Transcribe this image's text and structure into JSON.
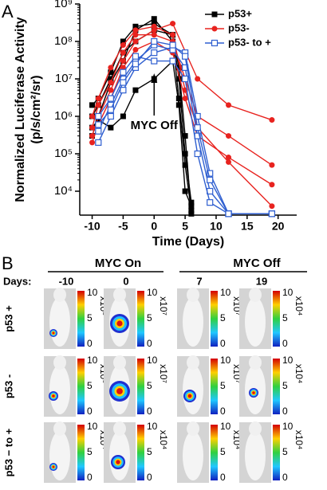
{
  "chart_data": {
    "type": "line",
    "panel_label": "A",
    "yscale": "log",
    "ylabel": [
      "Normalized Luciferase Activity",
      "(p/s/cm²/sr)"
    ],
    "xlabel": "Time (Days)",
    "xlim": [
      -12,
      23
    ],
    "xticks": [
      -10,
      -5,
      0,
      5,
      10,
      15,
      20
    ],
    "ylim": [
      2300,
      1000000000
    ],
    "yticks": [
      {
        "value": 10000,
        "label": "10⁴"
      },
      {
        "value": 100000,
        "label": "10⁵"
      },
      {
        "value": 1000000,
        "label": "10⁶"
      },
      {
        "value": 10000000,
        "label": "10⁷"
      },
      {
        "value": 100000000,
        "label": "10⁸"
      },
      {
        "value": 1000000000,
        "label": "10⁹"
      }
    ],
    "annotation": {
      "text": "MYC Off",
      "x": 0
    },
    "legend": "top-right",
    "series": [
      {
        "name": "p53+",
        "color": "#000000",
        "marker": "square-filled",
        "lines": [
          {
            "x": [
              -10,
              -9,
              -7,
              -5,
              -3,
              0,
              3,
              4,
              5,
              6
            ],
            "values": [
              300000,
              1000000,
              8000000,
              30000000,
              200000000,
              400000000,
              100000000,
              3000000,
              50000,
              3000
            ]
          },
          {
            "x": [
              -10,
              -9,
              -7,
              -5,
              -3,
              0,
              3,
              4,
              5,
              6
            ],
            "values": [
              1000000,
              2000000,
              10000000,
              50000000,
              100000000,
              200000000,
              150000000,
              10000000,
              100000,
              5000
            ]
          },
          {
            "x": [
              -10,
              -9,
              -7,
              -5,
              -3,
              0,
              3,
              4,
              5,
              6
            ],
            "values": [
              2000000,
              3000000,
              15000000,
              100000000,
              250000000,
              300000000,
              150000000,
              20000000,
              300000,
              2500
            ]
          },
          {
            "x": [
              -10,
              -9,
              -7,
              -5,
              -3,
              0,
              3,
              4,
              5,
              6
            ],
            "values": [
              500000,
              800000,
              500000,
              1000000,
              5000000,
              10000000,
              30000000,
              2000000,
              10000,
              4000
            ]
          }
        ]
      },
      {
        "name": "p53-",
        "color": "#e8231f",
        "marker": "circle-filled",
        "lines": [
          {
            "x": [
              -10,
              -9,
              -7,
              -5,
              -3,
              0,
              3,
              7,
              12,
              19
            ],
            "values": [
              300000,
              1000000,
              5000000,
              30000000,
              100000000,
              200000000,
              300000000,
              10000000,
              2000000,
              800000
            ]
          },
          {
            "x": [
              -10,
              -9,
              -7,
              -5,
              -3,
              0,
              3,
              5,
              7,
              12,
              19
            ],
            "values": [
              500000,
              2000000,
              8000000,
              50000000,
              150000000,
              150000000,
              100000000,
              10000000,
              1000000,
              300000,
              50000
            ]
          },
          {
            "x": [
              -10,
              -9,
              -7,
              -5,
              -3,
              0,
              3,
              5,
              7,
              12,
              19
            ],
            "values": [
              200000,
              600000,
              3000000,
              20000000,
              60000000,
              100000000,
              50000000,
              3000000,
              300000,
              80000,
              15000
            ]
          },
          {
            "x": [
              -10,
              -9,
              -7,
              -5,
              -3,
              0,
              3,
              5,
              7,
              12,
              19
            ],
            "values": [
              1000000,
              3000000,
              20000000,
              80000000,
              200000000,
              250000000,
              150000000,
              5000000,
              500000,
              60000,
              4000
            ]
          }
        ]
      },
      {
        "name": "p53- to +",
        "color": "#2f5fd0",
        "marker": "square-open",
        "lines": [
          {
            "x": [
              -9,
              -7,
              -5,
              -3,
              0,
              3,
              5,
              7,
              9,
              12,
              19
            ],
            "values": [
              200000,
              1000000,
              5000000,
              20000000,
              50000000,
              70000000,
              50000000,
              1000000,
              30000,
              2500,
              2500
            ]
          },
          {
            "x": [
              -9,
              -7,
              -5,
              -3,
              0,
              3,
              5,
              7,
              9,
              12,
              19
            ],
            "values": [
              400000,
              2000000,
              10000000,
              30000000,
              80000000,
              60000000,
              20000000,
              300000,
              10000,
              2500,
              2500
            ]
          },
          {
            "x": [
              -9,
              -7,
              -5,
              -3,
              0,
              3,
              5,
              7,
              9,
              12,
              19
            ],
            "values": [
              1000000,
              3000000,
              15000000,
              40000000,
              30000000,
              30000000,
              10000000,
              100000,
              5000,
              2500,
              2500
            ]
          },
          {
            "x": [
              -9,
              -7,
              -5,
              -3,
              0,
              3,
              5,
              7,
              9,
              12
            ],
            "values": [
              600000,
              1500000,
              8000000,
              25000000,
              100000000,
              80000000,
              40000000,
              500000,
              20000,
              2500
            ]
          }
        ]
      }
    ]
  },
  "panel_b": {
    "label": "B",
    "groups": [
      "MYC On",
      "MYC Off"
    ],
    "days_label": "Days:",
    "days": [
      "-10",
      "0",
      "7",
      "19"
    ],
    "row_labels": [
      "p53 +",
      "p53 -",
      "p53 − to +"
    ],
    "colorbar_ticks": [
      "10",
      "5",
      "0"
    ],
    "scales": [
      [
        "x10⁸",
        "x10⁷",
        "x10⁷",
        "x10⁴"
      ],
      [
        "x10⁶",
        "x10⁷",
        "x10⁷",
        "x10⁴"
      ],
      [
        "x10⁴",
        "x10⁴",
        "x10⁴",
        "x10⁴"
      ]
    ]
  }
}
